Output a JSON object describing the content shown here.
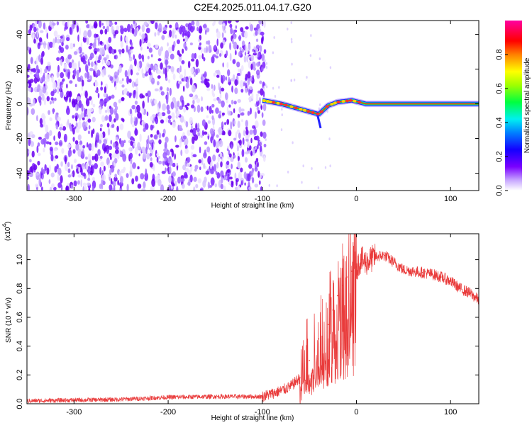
{
  "title": "C2E4.2025.011.04.17.G20",
  "chart_data": [
    {
      "type": "heatmap",
      "xlabel": "Height of straight line (km)",
      "ylabel": "Frequency (Hz)",
      "xlim": [
        -350,
        130
      ],
      "ylim": [
        -50,
        48
      ],
      "xticks": [
        "-300",
        "-200",
        "-100",
        "0",
        "100"
      ],
      "yticks": [
        "-40",
        "-20",
        "0",
        "20",
        "40"
      ],
      "xtick_values": [
        -300,
        -200,
        -100,
        0,
        100
      ],
      "ytick_values": [
        -40,
        -20,
        0,
        20,
        40
      ],
      "noise_region_x": [
        -350,
        -97
      ],
      "signal_band": {
        "x_start": -100,
        "x_end": 130,
        "center_frequency_hz": 0,
        "description_points": [
          {
            "x": -100,
            "y": 2
          },
          {
            "x": -80,
            "y": 0
          },
          {
            "x": -60,
            "y": -3
          },
          {
            "x": -40,
            "y": -6
          },
          {
            "x": -30,
            "y": -1
          },
          {
            "x": -20,
            "y": 1
          },
          {
            "x": -5,
            "y": 2
          },
          {
            "x": 10,
            "y": 0
          },
          {
            "x": 130,
            "y": 0
          }
        ]
      },
      "colorbar": {
        "label": "Normalized spectral amplitude",
        "ticks": [
          "0.0",
          "0.2",
          "0.4",
          "0.6",
          "0.8"
        ],
        "tick_values": [
          0.0,
          0.2,
          0.4,
          0.6,
          0.8
        ],
        "range": [
          0,
          1
        ],
        "colors": [
          "#ffffff",
          "#b58cff",
          "#7a00ff",
          "#0000ff",
          "#00ffff",
          "#00ff00",
          "#ffff00",
          "#ff7f00",
          "#ff0000",
          "#ff00a0"
        ]
      }
    },
    {
      "type": "line",
      "xlabel": "Height of straight line (km)",
      "ylabel": "SNR (10 * v/v)",
      "exponent_label": "(x10",
      "exponent_sup": "4",
      "exponent_close": ")",
      "xlim": [
        -350,
        130
      ],
      "ylim": [
        0,
        1.18
      ],
      "xticks": [
        "-300",
        "-200",
        "-100",
        "0",
        "100"
      ],
      "yticks": [
        "0.0",
        "0.2",
        "0.4",
        "0.6",
        "0.8",
        "1.0"
      ],
      "xtick_values": [
        -300,
        -200,
        -100,
        0,
        100
      ],
      "ytick_values": [
        0.0,
        0.2,
        0.4,
        0.6,
        0.8,
        1.0
      ],
      "color": "#e83030",
      "x": [
        -350,
        -300,
        -250,
        -200,
        -150,
        -100,
        -90,
        -80,
        -70,
        -60,
        -50,
        -40,
        -30,
        -25,
        -20,
        -15,
        -10,
        -5,
        0,
        5,
        10,
        20,
        30,
        40,
        50,
        60,
        70,
        80,
        90,
        100,
        110,
        120,
        130
      ],
      "y": [
        0.02,
        0.025,
        0.03,
        0.045,
        0.05,
        0.05,
        0.07,
        0.09,
        0.12,
        0.18,
        0.3,
        0.45,
        0.55,
        0.65,
        0.75,
        0.82,
        0.88,
        0.92,
        0.95,
        1.0,
        0.98,
        1.02,
        1.03,
        0.98,
        0.93,
        0.92,
        0.91,
        0.9,
        0.88,
        0.85,
        0.8,
        0.77,
        0.72
      ]
    }
  ]
}
